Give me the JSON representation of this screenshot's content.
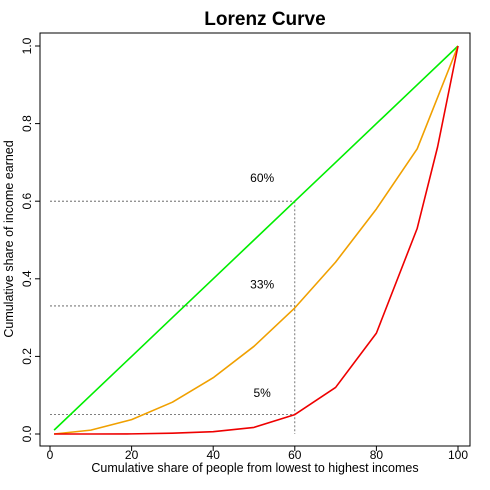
{
  "chart_data": {
    "type": "line",
    "title": "Lorenz Curve",
    "xlabel": "Cumulative share of people from lowest to highest incomes",
    "ylabel": "Cumulative share of income earned",
    "xlim": [
      0,
      100
    ],
    "ylim": [
      0,
      1
    ],
    "x_ticks": [
      "0",
      "20",
      "40",
      "60",
      "80",
      "100"
    ],
    "y_ticks": [
      "0.0",
      "0.2",
      "0.4",
      "0.6",
      "0.8",
      "1.0"
    ],
    "x_tick_values": [
      0,
      20,
      40,
      60,
      80,
      100
    ],
    "y_tick_values": [
      0,
      0.2,
      0.4,
      0.6,
      0.8,
      1.0
    ],
    "grid": false,
    "series": [
      {
        "color": "#00ee00",
        "x": [
          1,
          10,
          20,
          30,
          40,
          50,
          60,
          70,
          80,
          90,
          100
        ],
        "y": [
          0.01,
          0.1,
          0.2,
          0.3,
          0.4,
          0.5,
          0.6,
          0.7,
          0.8,
          0.9,
          1.0
        ]
      },
      {
        "color": "#f0a000",
        "x": [
          1,
          10,
          20,
          30,
          40,
          50,
          60,
          70,
          80,
          90,
          100
        ],
        "y": [
          0.0,
          0.01,
          0.037,
          0.082,
          0.145,
          0.226,
          0.325,
          0.443,
          0.58,
          0.735,
          1.0
        ]
      },
      {
        "color": "#ee0000",
        "x": [
          1,
          10,
          20,
          30,
          40,
          50,
          60,
          70,
          80,
          90,
          95,
          100
        ],
        "y": [
          0.0,
          0.0,
          0.0003,
          0.002,
          0.006,
          0.017,
          0.05,
          0.12,
          0.26,
          0.53,
          0.74,
          1.0
        ]
      }
    ],
    "reference_lines": [
      {
        "x": 60,
        "y": 0.6
      },
      {
        "x": 60,
        "y": 0.33
      },
      {
        "x": 60,
        "y": 0.05
      }
    ],
    "annotations": [
      {
        "text": "60%",
        "x": 52,
        "y": 0.65
      },
      {
        "text": "33%",
        "x": 52,
        "y": 0.375
      },
      {
        "text": "5%",
        "x": 52,
        "y": 0.095
      }
    ]
  }
}
